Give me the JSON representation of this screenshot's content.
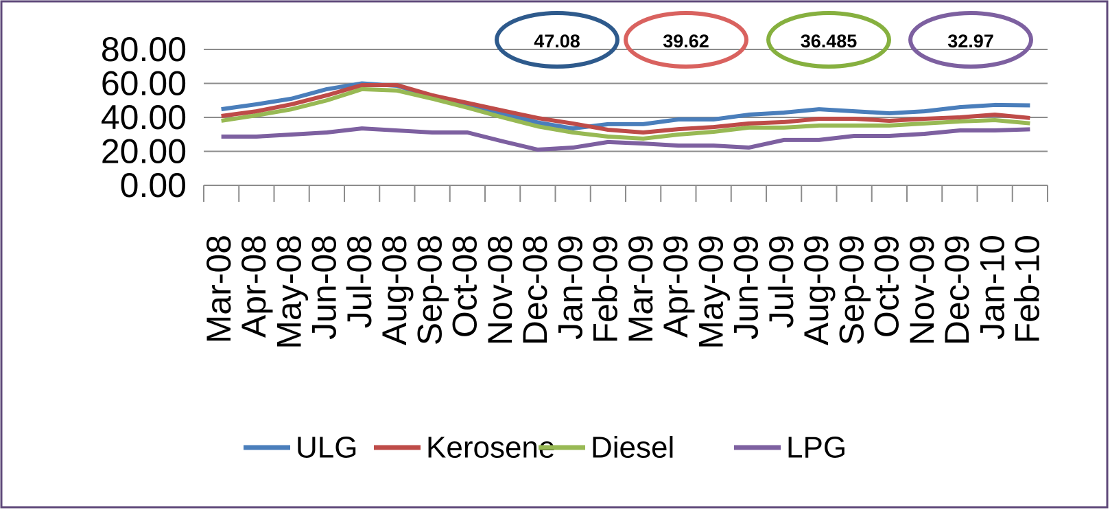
{
  "chart_data": {
    "type": "line",
    "categories": [
      "Mar-08",
      "Apr-08",
      "May-08",
      "Jun-08",
      "Jul-08",
      "Aug-08",
      "Sep-08",
      "Oct-08",
      "Nov-08",
      "Dec-08",
      "Jan-09",
      "Feb-09",
      "Mar-09",
      "Apr-09",
      "May-09",
      "Jun-09",
      "Jul-09",
      "Aug-09",
      "Sep-09",
      "Oct-09",
      "Nov-09",
      "Dec-09",
      "Jan-10",
      "Feb-10"
    ],
    "series": [
      {
        "name": "ULG",
        "color": "#4a7ebb",
        "values": [
          44.8,
          47.7,
          51,
          56.6,
          60,
          58.6,
          52.5,
          47.7,
          42.4,
          37,
          33.5,
          36,
          36,
          38.8,
          38.8,
          41.6,
          42.8,
          44.8,
          43.6,
          42.4,
          43.6,
          46,
          47.3,
          47.08
        ]
      },
      {
        "name": "Kerosene",
        "color": "#be4b48",
        "values": [
          40.8,
          43.6,
          47.7,
          53,
          59,
          59,
          53,
          48.5,
          44,
          39.6,
          36.4,
          32.7,
          31.1,
          33.1,
          34.3,
          36.4,
          37.2,
          39.2,
          39.2,
          38,
          39.2,
          40,
          41.6,
          39.62
        ]
      },
      {
        "name": "Diesel",
        "color": "#98b954",
        "values": [
          38,
          41.2,
          44.8,
          50,
          56.6,
          55.8,
          51,
          45.7,
          40,
          34.7,
          31.1,
          28.7,
          27.5,
          29.9,
          31.5,
          34,
          34,
          35.2,
          35.2,
          35.2,
          36.4,
          37.6,
          38.4,
          36.485
        ]
      },
      {
        "name": "LPG",
        "color": "#7d60a0",
        "values": [
          28.7,
          28.7,
          29.9,
          31.1,
          33.5,
          32.3,
          31.1,
          31.1,
          25.9,
          21,
          22.2,
          25.5,
          24.6,
          23.4,
          23.4,
          22.2,
          26.7,
          26.7,
          29.1,
          29.1,
          30.3,
          32.3,
          32.3,
          32.97
        ]
      }
    ],
    "ylim": [
      0,
      80
    ],
    "yticks": [
      {
        "value": 0,
        "label": "0.00"
      },
      {
        "value": 20,
        "label": "20.00"
      },
      {
        "value": 40,
        "label": "40.00"
      },
      {
        "value": 60,
        "label": "60.00"
      },
      {
        "value": 80,
        "label": "80.00"
      }
    ],
    "grid": true,
    "legend": "bottom",
    "annotations": [
      {
        "text": "47.08",
        "color": "#2e5a8c"
      },
      {
        "text": "39.62",
        "color": "#d9625f"
      },
      {
        "text": "36.485",
        "color": "#86b03f"
      },
      {
        "text": "32.97",
        "color": "#7d60a0"
      }
    ]
  }
}
